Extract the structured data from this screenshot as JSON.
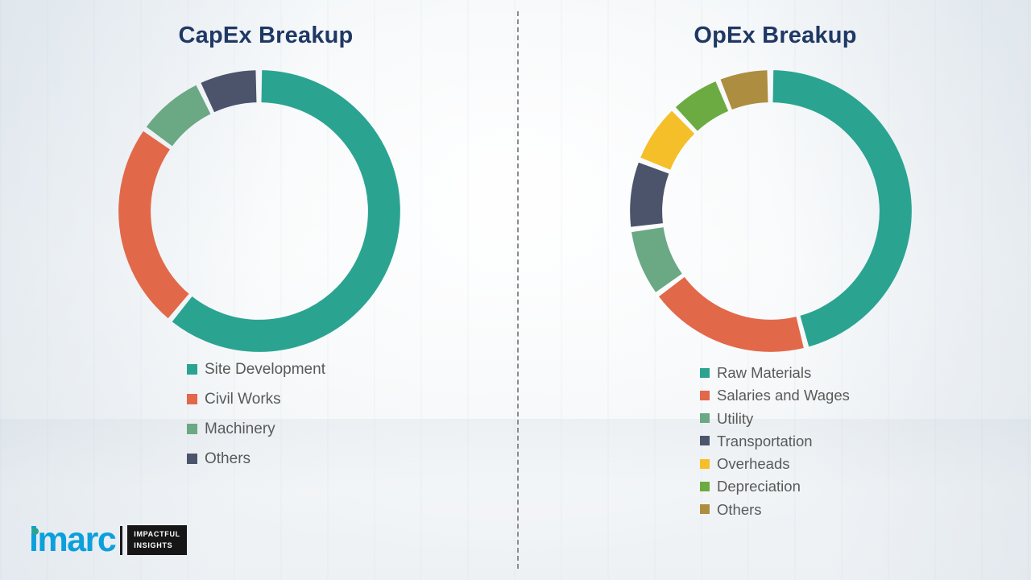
{
  "chart_data": [
    {
      "type": "pie",
      "subtype": "donut",
      "title": "CapEx Breakup",
      "labels": [
        "Site Development",
        "Civil Works",
        "Machinery",
        "Others"
      ],
      "values": [
        61,
        24,
        8,
        7
      ],
      "colors": [
        "#2aa491",
        "#e2684a",
        "#6ba884",
        "#4c546c"
      ],
      "legend_position": "bottom-left",
      "title_color": "#1f3864",
      "legend_text_color": "#595959"
    },
    {
      "type": "pie",
      "subtype": "donut",
      "title": "OpEx Breakup",
      "labels": [
        "Raw Materials",
        "Salaries and Wages",
        "Utility",
        "Transportation",
        "Overheads",
        "Depreciation",
        "Others"
      ],
      "values": [
        46,
        19,
        8,
        8,
        7,
        6,
        6
      ],
      "colors": [
        "#2aa491",
        "#e2684a",
        "#6ba884",
        "#4c546c",
        "#f5bf2a",
        "#6cab41",
        "#ad8d3f"
      ],
      "legend_position": "bottom-left",
      "title_color": "#1f3864",
      "legend_text_color": "#595959"
    }
  ],
  "divider": {
    "style": "dashed-vertical",
    "color": "#8c8c8c"
  },
  "logo": {
    "brand": "imarc",
    "brand_color": "#0ba0dc",
    "dot_color": "#2aa491",
    "tagline_line1": "IMPACTFUL",
    "tagline_line2": "INSIGHTS"
  }
}
